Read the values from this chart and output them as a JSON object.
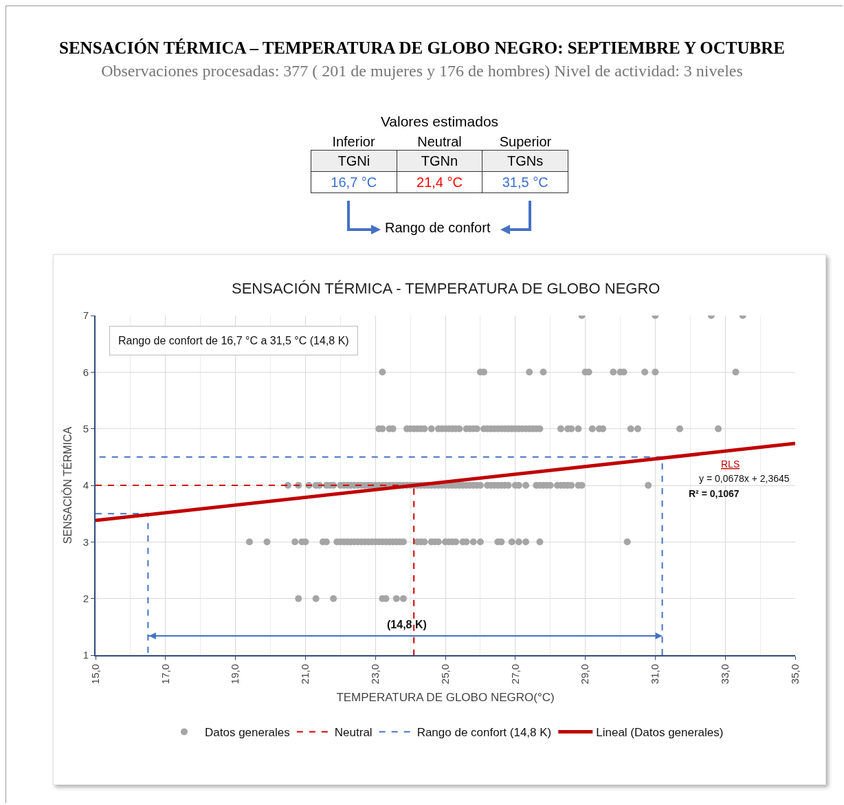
{
  "chart_data": {
    "type": "scatter",
    "title": "SENSACIÓN TÉRMICA – TEMPERATURA DE GLOBO NEGRO: SEPTIEMBRE Y OCTUBRE",
    "subtitle": "Observaciones procesadas: 377 ( 201 de mujeres y 176 de hombres) Nivel de actividad: 3 niveles",
    "xlabel": "TEMPERATURA DE GLOBO NEGRO(°C)",
    "ylabel": "SENSACIÓN TÉRMICA",
    "annotations": [
      "Valores estimados",
      "Inferior",
      "Neutral",
      "Superior",
      "TGNi",
      "TGNn",
      "TGNs",
      "16,7 °C",
      "21,4 °C",
      "31,5 °C",
      "Rango de confort",
      "SENSACIÓN TÉRMICA - TEMPERATURA DE GLOBO NEGRO",
      "Rango de confort de 16,7 °C a 31,5 °C (14,8 K)",
      {
        "text": "(14,8 K)",
        "x": 23.9,
        "y": 1.34
      },
      "RLS",
      "y = 0,0678x + 2,3645",
      "R² = 0,1067"
    ],
    "xlim": [
      15,
      35
    ],
    "xticks": [
      {
        "value": 15,
        "label": "15,0"
      },
      {
        "value": 17,
        "label": "17,0"
      },
      {
        "value": 19,
        "label": "19,0"
      },
      {
        "value": 21,
        "label": "21,0"
      },
      {
        "value": 23,
        "label": "23,0"
      },
      {
        "value": 25,
        "label": "25,0"
      },
      {
        "value": 27,
        "label": "27,0"
      },
      {
        "value": 29,
        "label": "29,0"
      },
      {
        "value": 31,
        "label": "31,0"
      },
      {
        "value": 33,
        "label": "33,0"
      },
      {
        "value": 35,
        "label": "35,0"
      }
    ],
    "ylim": [
      1,
      7
    ],
    "yticks": [
      1,
      2,
      3,
      4,
      5,
      6,
      7
    ],
    "grid": true,
    "legend": "bottom",
    "series": [
      {
        "name": "Datos generales",
        "color": "#a5a5a5",
        "marker": "circle",
        "x": [
          28.9,
          31.0,
          32.6,
          33.5,
          23.2,
          26.0,
          26.1,
          27.4,
          27.8,
          29.0,
          29.1,
          29.8,
          30.0,
          30.1,
          30.7,
          31.0,
          33.3,
          23.1,
          23.2,
          23.4,
          23.5,
          23.9,
          24.0,
          24.1,
          24.2,
          24.3,
          24.4,
          24.6,
          24.8,
          24.9,
          25.0,
          25.1,
          25.2,
          25.3,
          25.4,
          25.6,
          25.7,
          25.8,
          25.9,
          26.1,
          26.2,
          26.3,
          26.4,
          26.5,
          26.6,
          26.7,
          26.8,
          26.9,
          27.0,
          27.1,
          27.2,
          27.3,
          27.4,
          27.5,
          27.6,
          27.7,
          28.3,
          28.5,
          28.6,
          28.8,
          29.2,
          29.4,
          29.5,
          30.3,
          30.5,
          31.7,
          32.8,
          20.5,
          20.8,
          21.1,
          21.3,
          21.4,
          21.6,
          21.7,
          21.8,
          22.0,
          22.1,
          22.2,
          22.3,
          22.4,
          22.5,
          22.6,
          22.7,
          22.8,
          22.9,
          23.0,
          23.1,
          23.2,
          23.3,
          23.4,
          23.5,
          23.6,
          23.7,
          23.8,
          23.9,
          24.0,
          24.1,
          24.2,
          24.3,
          24.4,
          24.5,
          24.6,
          24.7,
          24.8,
          24.9,
          25.0,
          25.1,
          25.2,
          25.3,
          25.4,
          25.5,
          25.6,
          25.7,
          25.8,
          25.9,
          26.0,
          26.2,
          26.3,
          26.4,
          26.5,
          26.6,
          26.7,
          26.8,
          27.0,
          27.1,
          27.3,
          27.6,
          27.7,
          27.8,
          27.9,
          28.0,
          28.2,
          28.3,
          28.4,
          28.5,
          28.6,
          28.8,
          28.9,
          30.8,
          19.4,
          19.9,
          20.7,
          20.9,
          21.0,
          21.5,
          21.6,
          21.9,
          22.0,
          22.1,
          22.2,
          22.3,
          22.4,
          22.5,
          22.6,
          22.7,
          22.8,
          22.9,
          23.0,
          23.1,
          23.2,
          23.3,
          23.4,
          23.5,
          23.6,
          23.7,
          23.8,
          24.2,
          24.3,
          24.4,
          24.6,
          24.7,
          24.8,
          25.0,
          25.1,
          25.2,
          25.3,
          25.5,
          25.6,
          25.8,
          26.0,
          26.5,
          26.6,
          26.9,
          27.1,
          27.3,
          27.7,
          30.2,
          20.8,
          21.3,
          21.8,
          23.2,
          23.3,
          23.6,
          23.8
        ],
        "values": [
          7,
          7,
          7,
          7,
          6,
          6,
          6,
          6,
          6,
          6,
          6,
          6,
          6,
          6,
          6,
          6,
          6,
          5,
          5,
          5,
          5,
          5,
          5,
          5,
          5,
          5,
          5,
          5,
          5,
          5,
          5,
          5,
          5,
          5,
          5,
          5,
          5,
          5,
          5,
          5,
          5,
          5,
          5,
          5,
          5,
          5,
          5,
          5,
          5,
          5,
          5,
          5,
          5,
          5,
          5,
          5,
          5,
          5,
          5,
          5,
          5,
          5,
          5,
          5,
          5,
          5,
          5,
          4,
          4,
          4,
          4,
          4,
          4,
          4,
          4,
          4,
          4,
          4,
          4,
          4,
          4,
          4,
          4,
          4,
          4,
          4,
          4,
          4,
          4,
          4,
          4,
          4,
          4,
          4,
          4,
          4,
          4,
          4,
          4,
          4,
          4,
          4,
          4,
          4,
          4,
          4,
          4,
          4,
          4,
          4,
          4,
          4,
          4,
          4,
          4,
          4,
          4,
          4,
          4,
          4,
          4,
          4,
          4,
          4,
          4,
          4,
          4,
          4,
          4,
          4,
          4,
          4,
          4,
          4,
          4,
          4,
          4,
          4,
          4,
          3,
          3,
          3,
          3,
          3,
          3,
          3,
          3,
          3,
          3,
          3,
          3,
          3,
          3,
          3,
          3,
          3,
          3,
          3,
          3,
          3,
          3,
          3,
          3,
          3,
          3,
          3,
          3,
          3,
          3,
          3,
          3,
          3,
          3,
          3,
          3,
          3,
          3,
          3,
          3,
          3,
          3,
          3,
          3,
          3,
          3,
          3,
          3,
          2,
          2,
          2,
          2,
          2,
          2,
          2
        ]
      },
      {
        "name": "Neutral",
        "type": "line",
        "color": "#d00000",
        "line_style": "dashed",
        "x": [
          15,
          24.1,
          24.1
        ],
        "values": [
          4,
          4,
          1
        ]
      },
      {
        "name": "Rango de confort (14,8 K)",
        "type": "line",
        "color": "#4472c4",
        "line_style": "dashed",
        "x": [
          15,
          16.5,
          16.5,
          null,
          31.2,
          31.2,
          15,
          null,
          16.5,
          31.2
        ],
        "values": [
          3.5,
          3.5,
          1,
          null,
          1,
          4.5,
          4.5,
          null,
          1.34,
          1.34
        ]
      },
      {
        "name": "Lineal (Datos generales)",
        "type": "line",
        "color": "#c00000",
        "line_style": "solid",
        "x": [
          15,
          35
        ],
        "values": [
          3.38,
          4.74
        ]
      }
    ]
  }
}
